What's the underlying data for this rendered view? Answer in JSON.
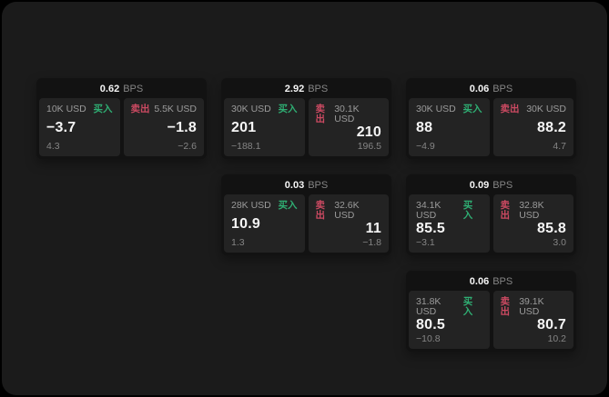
{
  "labels": {
    "unit": "BPS",
    "buy": "买入",
    "sell": "卖出"
  },
  "colors": {
    "background": "#000000",
    "panel": "#1b1b1b",
    "card": "#121212",
    "tile": "#232323",
    "text_primary": "#f5f5f5",
    "text_secondary": "#9b9b9b",
    "text_faint": "#858585",
    "buy_green": "#2fae73",
    "sell_red": "#cc4a62"
  },
  "cards": [
    {
      "spread_bps": "0.62",
      "buy": {
        "size": "10K USD",
        "price": "−3.7",
        "delta": "4.3"
      },
      "sell": {
        "size": "5.5K USD",
        "price": "−1.8",
        "delta": "−2.6"
      }
    },
    {
      "spread_bps": "2.92",
      "buy": {
        "size": "30K USD",
        "price": "201",
        "delta": "−188.1"
      },
      "sell": {
        "size": "30.1K USD",
        "price": "210",
        "delta": "196.5"
      }
    },
    {
      "spread_bps": "0.06",
      "buy": {
        "size": "30K USD",
        "price": "88",
        "delta": "−4.9"
      },
      "sell": {
        "size": "30K USD",
        "price": "88.2",
        "delta": "4.7"
      }
    },
    {
      "spread_bps": "0.03",
      "buy": {
        "size": "28K USD",
        "price": "10.9",
        "delta": "1.3"
      },
      "sell": {
        "size": "32.6K USD",
        "price": "11",
        "delta": "−1.8"
      }
    },
    {
      "spread_bps": "0.09",
      "buy": {
        "size": "34.1K USD",
        "price": "85.5",
        "delta": "−3.1"
      },
      "sell": {
        "size": "32.8K USD",
        "price": "85.8",
        "delta": "3.0"
      }
    },
    {
      "spread_bps": "0.06",
      "buy": {
        "size": "31.8K USD",
        "price": "80.5",
        "delta": "−10.8"
      },
      "sell": {
        "size": "39.1K USD",
        "price": "80.7",
        "delta": "10.2"
      }
    }
  ]
}
